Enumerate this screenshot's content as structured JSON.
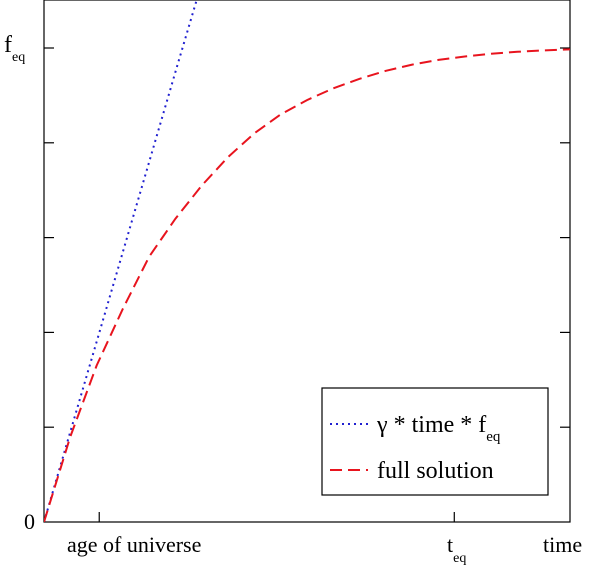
{
  "chart_data": {
    "type": "line",
    "title": "",
    "xlabel": "",
    "ylabel": "",
    "xlim": [
      0,
      1
    ],
    "ylim": [
      0,
      1.08
    ],
    "grid": false,
    "legend_placement": "bottom-right",
    "x_tick_labels": [
      {
        "x": 0.105,
        "label": "age of universe"
      },
      {
        "x": 0.78,
        "label": "t",
        "subscript": "eq"
      },
      {
        "x": 1.0,
        "label": "time"
      }
    ],
    "y_tick_labels": [
      {
        "y": 0,
        "label": "0"
      },
      {
        "y": 1.0,
        "label": "f",
        "subscript": "eq"
      }
    ],
    "series": [
      {
        "name_parts": {
          "gamma": "γ * time * f",
          "subscript": "eq"
        },
        "style": "dotted",
        "color": "#2020d0",
        "x": [
          0.0,
          0.05,
          0.1,
          0.15,
          0.2,
          0.25,
          0.29
        ],
        "y": [
          0.0,
          0.19,
          0.38,
          0.57,
          0.76,
          0.95,
          1.1
        ]
      },
      {
        "name": "full solution",
        "style": "dashed",
        "color": "#e8141e",
        "x": [
          0.0,
          0.05,
          0.1,
          0.15,
          0.2,
          0.25,
          0.3,
          0.35,
          0.4,
          0.45,
          0.5,
          0.55,
          0.6,
          0.65,
          0.7,
          0.75,
          0.8,
          0.85,
          0.9,
          0.95,
          1.0
        ],
        "y": [
          0.0,
          0.18,
          0.33,
          0.45,
          0.56,
          0.64,
          0.71,
          0.77,
          0.82,
          0.86,
          0.89,
          0.915,
          0.935,
          0.952,
          0.965,
          0.975,
          0.982,
          0.988,
          0.992,
          0.995,
          0.997
        ]
      }
    ]
  }
}
